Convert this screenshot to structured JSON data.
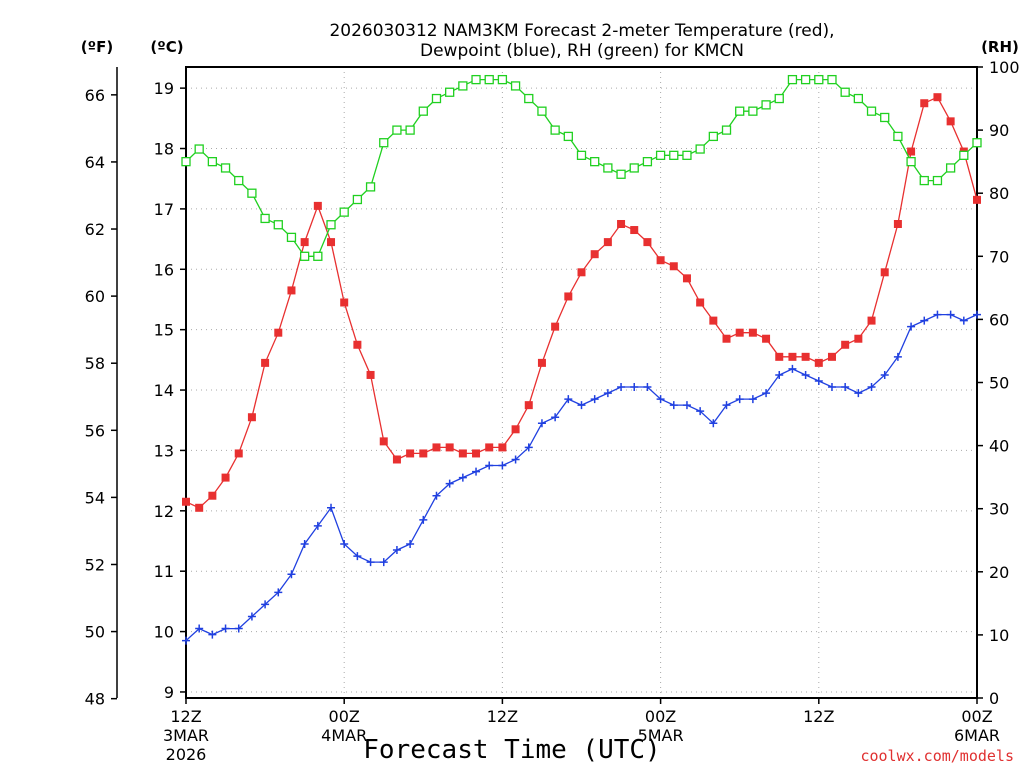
{
  "chart_data": {
    "type": "line",
    "title_line1": "2026030312 NAM3KM Forecast 2-meter Temperature (red),",
    "title_line2": "Dewpoint (blue), RH (green) for KMCN",
    "xlabel": "Forecast Time (UTC)",
    "credit": "coolwx.com/models",
    "units": {
      "fahrenheit": "(ºF)",
      "celsius": "(ºC)",
      "rh": "(RH)"
    },
    "x_range_hours": [
      0,
      60
    ],
    "x_ticks": [
      {
        "hour": 0,
        "line1": "12Z",
        "line2": "3MAR",
        "line3": "2026"
      },
      {
        "hour": 12,
        "line1": "00Z",
        "line2": "4MAR",
        "line3": ""
      },
      {
        "hour": 24,
        "line1": "12Z",
        "line2": "",
        "line3": ""
      },
      {
        "hour": 36,
        "line1": "00Z",
        "line2": "5MAR",
        "line3": ""
      },
      {
        "hour": 48,
        "line1": "12Z",
        "line2": "",
        "line3": ""
      },
      {
        "hour": 60,
        "line1": "00Z",
        "line2": "6MAR",
        "line3": ""
      }
    ],
    "y_celsius_range": [
      8.9,
      19.35
    ],
    "y_celsius_ticks": [
      9,
      10,
      11,
      12,
      13,
      14,
      15,
      16,
      17,
      18,
      19
    ],
    "y_fahrenheit_ticks": [
      48,
      50,
      52,
      54,
      56,
      58,
      60,
      62,
      64,
      66
    ],
    "y_rh_range": [
      0,
      100
    ],
    "y_rh_ticks": [
      0,
      10,
      20,
      30,
      40,
      50,
      60,
      70,
      80,
      90,
      100
    ],
    "series": [
      {
        "name": "2-meter Temperature",
        "color": "#e83030",
        "marker": "filled-square",
        "axis": "celsius",
        "values": [
          12.15,
          12.05,
          12.25,
          12.55,
          12.95,
          13.55,
          14.45,
          14.95,
          15.65,
          16.45,
          17.05,
          16.45,
          15.45,
          14.75,
          14.25,
          13.15,
          12.85,
          12.95,
          12.95,
          13.05,
          13.05,
          12.95,
          12.95,
          13.05,
          13.05,
          13.35,
          13.75,
          14.45,
          15.05,
          15.55,
          15.95,
          16.25,
          16.45,
          16.75,
          16.65,
          16.45,
          16.15,
          16.05,
          15.85,
          15.45,
          15.15,
          14.85,
          14.95,
          14.95,
          14.85,
          14.55,
          14.55,
          14.55,
          14.45,
          14.55,
          14.75,
          14.85,
          15.15,
          15.95,
          16.75,
          17.95,
          18.75,
          18.85,
          18.45,
          17.95,
          17.15
        ]
      },
      {
        "name": "Dewpoint",
        "color": "#2040e0",
        "marker": "plus",
        "axis": "celsius",
        "values": [
          9.85,
          10.05,
          9.95,
          10.05,
          10.05,
          10.25,
          10.45,
          10.65,
          10.95,
          11.45,
          11.75,
          12.05,
          11.45,
          11.25,
          11.15,
          11.15,
          11.35,
          11.45,
          11.85,
          12.25,
          12.45,
          12.55,
          12.65,
          12.75,
          12.75,
          12.85,
          13.05,
          13.45,
          13.55,
          13.85,
          13.75,
          13.85,
          13.95,
          14.05,
          14.05,
          14.05,
          13.85,
          13.75,
          13.75,
          13.65,
          13.45,
          13.75,
          13.85,
          13.85,
          13.95,
          14.25,
          14.35,
          14.25,
          14.15,
          14.05,
          14.05,
          13.95,
          14.05,
          14.25,
          14.55,
          15.05,
          15.15,
          15.25,
          15.25,
          15.15,
          15.25
        ]
      },
      {
        "name": "RH",
        "color": "#20d020",
        "marker": "open-square",
        "axis": "rh",
        "values": [
          85,
          87,
          85,
          84,
          82,
          80,
          76,
          75,
          73,
          70,
          70,
          75,
          77,
          79,
          81,
          88,
          90,
          90,
          93,
          95,
          96,
          97,
          98,
          98,
          98,
          97,
          95,
          93,
          90,
          89,
          86,
          85,
          84,
          83,
          84,
          85,
          86,
          86,
          86,
          87,
          89,
          90,
          93,
          93,
          94,
          95,
          98,
          98,
          98,
          98,
          96,
          95,
          93,
          92,
          89,
          85,
          82,
          82,
          84,
          86,
          88
        ]
      }
    ]
  }
}
